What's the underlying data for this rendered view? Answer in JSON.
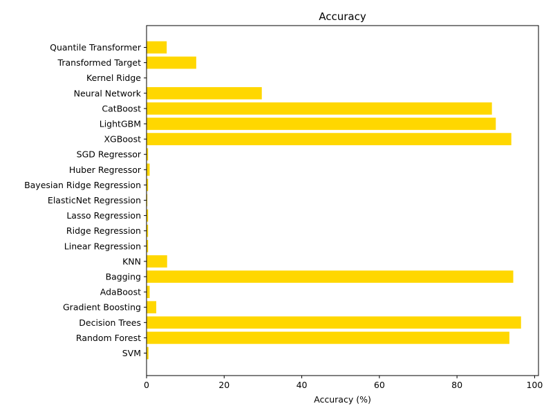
{
  "chart_data": {
    "type": "bar",
    "orientation": "horizontal",
    "title": "Accuracy",
    "xlabel": "Accuracy (%)",
    "ylabel": "",
    "xlim": [
      0,
      101
    ],
    "xticks": [
      0,
      20,
      40,
      60,
      80,
      100
    ],
    "grid": false,
    "bar_color": "#ffd700",
    "categories": [
      "SVM",
      "Random Forest",
      "Decision Trees",
      "Gradient Boosting",
      "AdaBoost",
      "Bagging",
      "KNN",
      "Linear Regression",
      "Ridge Regression",
      "Lasso Regression",
      "ElasticNet Regression",
      "Bayesian Ridge Regression",
      "Huber Regressor",
      "SGD Regressor",
      "XGBoost",
      "LightGBM",
      "CatBoost",
      "Neural Network",
      "Kernel Ridge",
      "Transformed Target",
      "Quantile Transformer"
    ],
    "values": [
      0.5,
      93.5,
      96.5,
      2.5,
      0.8,
      94.5,
      5.3,
      0.4,
      0.4,
      0.4,
      0.2,
      0.4,
      0.8,
      0.4,
      94.0,
      90.0,
      89.0,
      29.7,
      0.1,
      12.8,
      5.2
    ]
  }
}
